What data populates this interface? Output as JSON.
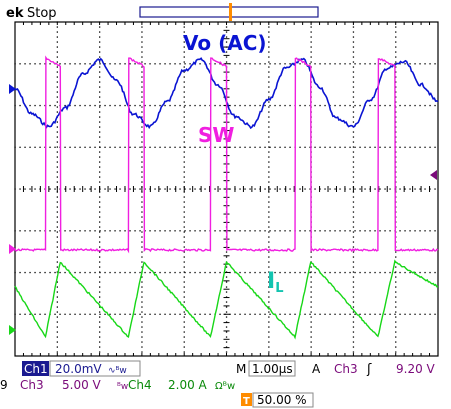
{
  "header": {
    "brand": "ek",
    "state": "Stop"
  },
  "labels": {
    "vo": "Vo (AC)",
    "sw": "SW",
    "il_main": "I",
    "il_sub": "L"
  },
  "readout": {
    "row1": {
      "ch1_label": "Ch1",
      "ch1_scale": "20.0mV",
      "ch1_suffix": "∿ᴮw",
      "time_prefix": "M",
      "timebase": "1.00µs",
      "trig_prefix": "A",
      "trig_ch": "Ch3",
      "trig_slope": "ʃ",
      "trig_level": "9.20 V"
    },
    "row2": {
      "edge_digit": "9",
      "ch3_label": "Ch3",
      "ch3_scale": "5.00 V",
      "ch3_suffix": "ᴮw",
      "ch4_label": "Ch4",
      "ch4_scale": "2.00 A",
      "ch4_suffix": "Ωᴮw"
    },
    "row3": {
      "t_marker": "T",
      "trig_pos": "50.00 %"
    }
  },
  "colors": {
    "vo": "#0a14d2",
    "sw": "#f01fe0",
    "il": "#17d717",
    "grid": "#000000",
    "readout_bg": "#1a1a90"
  },
  "chart_data": {
    "type": "line",
    "xlabel": "",
    "ylabel": "",
    "x_range_us": [
      0,
      10
    ],
    "x_divisions": 10,
    "y_divisions": 8,
    "timebase_per_div": "1.00µs",
    "switch_period_us": 2.0,
    "series": [
      {
        "name": "Vo (AC)",
        "channel": "Ch1",
        "scale_per_div": "20.0mV",
        "x_us": [
          0.0,
          0.4,
          0.8,
          1.2,
          1.6,
          2.0,
          2.4,
          2.8,
          3.2,
          3.6,
          4.0,
          4.4,
          4.8,
          5.2,
          5.6,
          6.0,
          6.4,
          6.8,
          7.2,
          7.6,
          8.0,
          8.4,
          8.8,
          9.2,
          9.6,
          10.0
        ],
        "y_mV": [
          0,
          -12,
          -18,
          -9,
          7,
          14,
          4,
          -12,
          -18,
          -6,
          9,
          14,
          2,
          -13,
          -18,
          -5,
          10,
          14,
          1,
          -14,
          -18,
          -5,
          10,
          13,
          2,
          -6
        ]
      },
      {
        "name": "SW",
        "channel": "Ch3",
        "scale_per_div": "5.00 V",
        "x_us": [
          0.0,
          0.72,
          0.73,
          1.07,
          1.08,
          2.68,
          2.69,
          3.05,
          3.06,
          4.62,
          4.63,
          5.0,
          5.01,
          6.62,
          6.63,
          6.99,
          7.0,
          8.58,
          8.59,
          8.98,
          8.99,
          10.0
        ],
        "y_V": [
          0,
          0,
          23,
          22,
          0,
          0,
          23,
          22,
          0,
          0,
          23,
          22,
          0,
          0,
          23,
          22,
          0,
          0,
          23,
          22,
          0,
          0
        ]
      },
      {
        "name": "IL",
        "channel": "Ch4",
        "scale_per_div": "2.00 A",
        "x_us": [
          0.0,
          0.72,
          1.07,
          2.68,
          3.05,
          4.62,
          5.0,
          6.62,
          6.99,
          8.58,
          8.98,
          10.0
        ],
        "y_A": [
          2.4,
          0.0,
          3.6,
          0.0,
          3.6,
          0.0,
          3.6,
          0.0,
          3.6,
          0.0,
          3.6,
          2.4
        ]
      }
    ],
    "annotations": [
      "Vo (AC)",
      "SW",
      "IL"
    ],
    "grid": true,
    "legend": "none"
  }
}
